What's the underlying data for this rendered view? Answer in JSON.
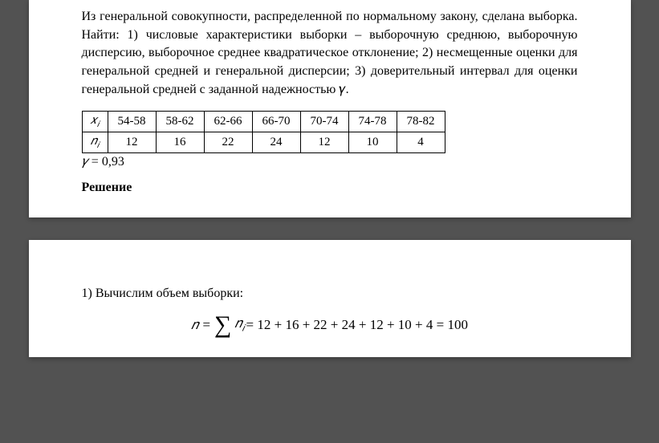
{
  "problem": {
    "text": "Из генеральной совокупности, распределенной по нормальному закону, сделана выборка. Найти: 1) числовые характеристики выборки – выборочную среднюю, выборочную дисперсию, выборочное среднее квадратическое отклонение; 2) несмещенные оценки для генеральной средней и генеральной дисперсии; 3) доверительный интервал для оценки генеральной средней с заданной надежностью 𝛾."
  },
  "table": {
    "row1_label": "𝑥",
    "row1_sub": "𝑖",
    "row2_label": "𝑛",
    "row2_sub": "𝑖",
    "intervals": [
      "54-58",
      "58-62",
      "62-66",
      "66-70",
      "70-74",
      "74-78",
      "78-82"
    ],
    "counts": [
      "12",
      "16",
      "22",
      "24",
      "12",
      "10",
      "4"
    ]
  },
  "gamma": {
    "symbol": "𝛾",
    "eq": " = 0,93"
  },
  "solution_label": "Решение",
  "step1": {
    "text": "1) Вычислим объем выборки:",
    "formula_lhs": "𝑛 = ",
    "formula_sigma": "∑",
    "formula_var": "𝑛",
    "formula_sub": "𝑖",
    "formula_rhs": " = 12 + 16 + 22 + 24 + 12 + 10 + 4 = 100"
  }
}
